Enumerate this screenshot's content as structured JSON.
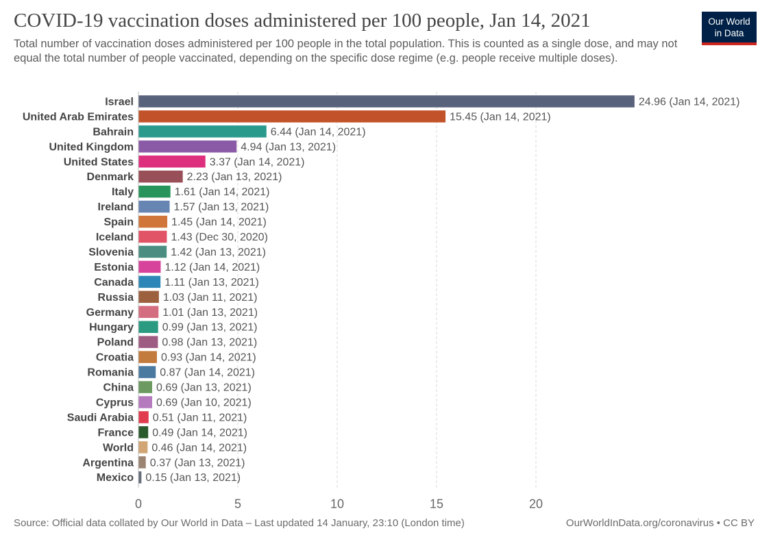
{
  "header": {
    "title": "COVID-19 vaccination doses administered per 100 people, Jan 14, 2021",
    "subtitle": "Total number of vaccination doses administered per 100 people in the total population. This is counted as a single dose, and may not equal the total number of people vaccinated, depending on the specific dose regime (e.g. people receive multiple doses).",
    "logo_line1": "Our World",
    "logo_line2": "in Data",
    "logo_bg_color": "#002147",
    "logo_accent_color": "#ce261e"
  },
  "footer": {
    "source": "Source: Official data collated by Our World in Data – Last updated 14 January, 23:10 (London time)",
    "license": "OurWorldInData.org/coronavirus • CC BY"
  },
  "chart_data": {
    "type": "bar",
    "orientation": "horizontal",
    "xlim": [
      0,
      25
    ],
    "ticks": [
      0,
      5,
      10,
      15,
      20
    ],
    "grid": "vertical dashed",
    "categories": [
      "Israel",
      "United Arab Emirates",
      "Bahrain",
      "United Kingdom",
      "United States",
      "Denmark",
      "Italy",
      "Ireland",
      "Spain",
      "Iceland",
      "Slovenia",
      "Estonia",
      "Canada",
      "Russia",
      "Germany",
      "Hungary",
      "Poland",
      "Croatia",
      "Romania",
      "China",
      "Cyprus",
      "Saudi Arabia",
      "France",
      "World",
      "Argentina",
      "Mexico"
    ],
    "values": [
      24.96,
      15.45,
      6.44,
      4.94,
      3.37,
      2.23,
      1.61,
      1.57,
      1.45,
      1.43,
      1.42,
      1.12,
      1.11,
      1.03,
      1.01,
      0.99,
      0.98,
      0.93,
      0.87,
      0.69,
      0.69,
      0.51,
      0.49,
      0.46,
      0.37,
      0.15
    ],
    "value_labels": [
      "24.96 (Jan 14, 2021)",
      "15.45 (Jan 14, 2021)",
      "6.44 (Jan 14, 2021)",
      "4.94 (Jan 13, 2021)",
      "3.37 (Jan 14, 2021)",
      "2.23 (Jan 13, 2021)",
      "1.61 (Jan 14, 2021)",
      "1.57 (Jan 13, 2021)",
      "1.45 (Jan 14, 2021)",
      "1.43 (Dec 30, 2020)",
      "1.42 (Jan 13, 2021)",
      "1.12 (Jan 14, 2021)",
      "1.11 (Jan 13, 2021)",
      "1.03 (Jan 11, 2021)",
      "1.01 (Jan 13, 2021)",
      "0.99 (Jan 13, 2021)",
      "0.98 (Jan 13, 2021)",
      "0.93 (Jan 14, 2021)",
      "0.87 (Jan 14, 2021)",
      "0.69 (Jan 13, 2021)",
      "0.69 (Jan 10, 2021)",
      "0.51 (Jan 11, 2021)",
      "0.49 (Jan 14, 2021)",
      "0.46 (Jan 14, 2021)",
      "0.37 (Jan 13, 2021)",
      "0.15 (Jan 13, 2021)"
    ],
    "colors": [
      "#58627a",
      "#c15229",
      "#2a9a8d",
      "#8a5aa6",
      "#de2f7e",
      "#994f58",
      "#27955b",
      "#6785b2",
      "#d0763b",
      "#e15467",
      "#4b8e81",
      "#d7429b",
      "#2d86b8",
      "#9d603f",
      "#d46d7f",
      "#2a9a81",
      "#9e5c82",
      "#c37b3d",
      "#4a7aa0",
      "#6c9a60",
      "#b47abd",
      "#e03c4e",
      "#2b5a2c",
      "#d1a574",
      "#9b8472",
      "#666d79"
    ]
  }
}
